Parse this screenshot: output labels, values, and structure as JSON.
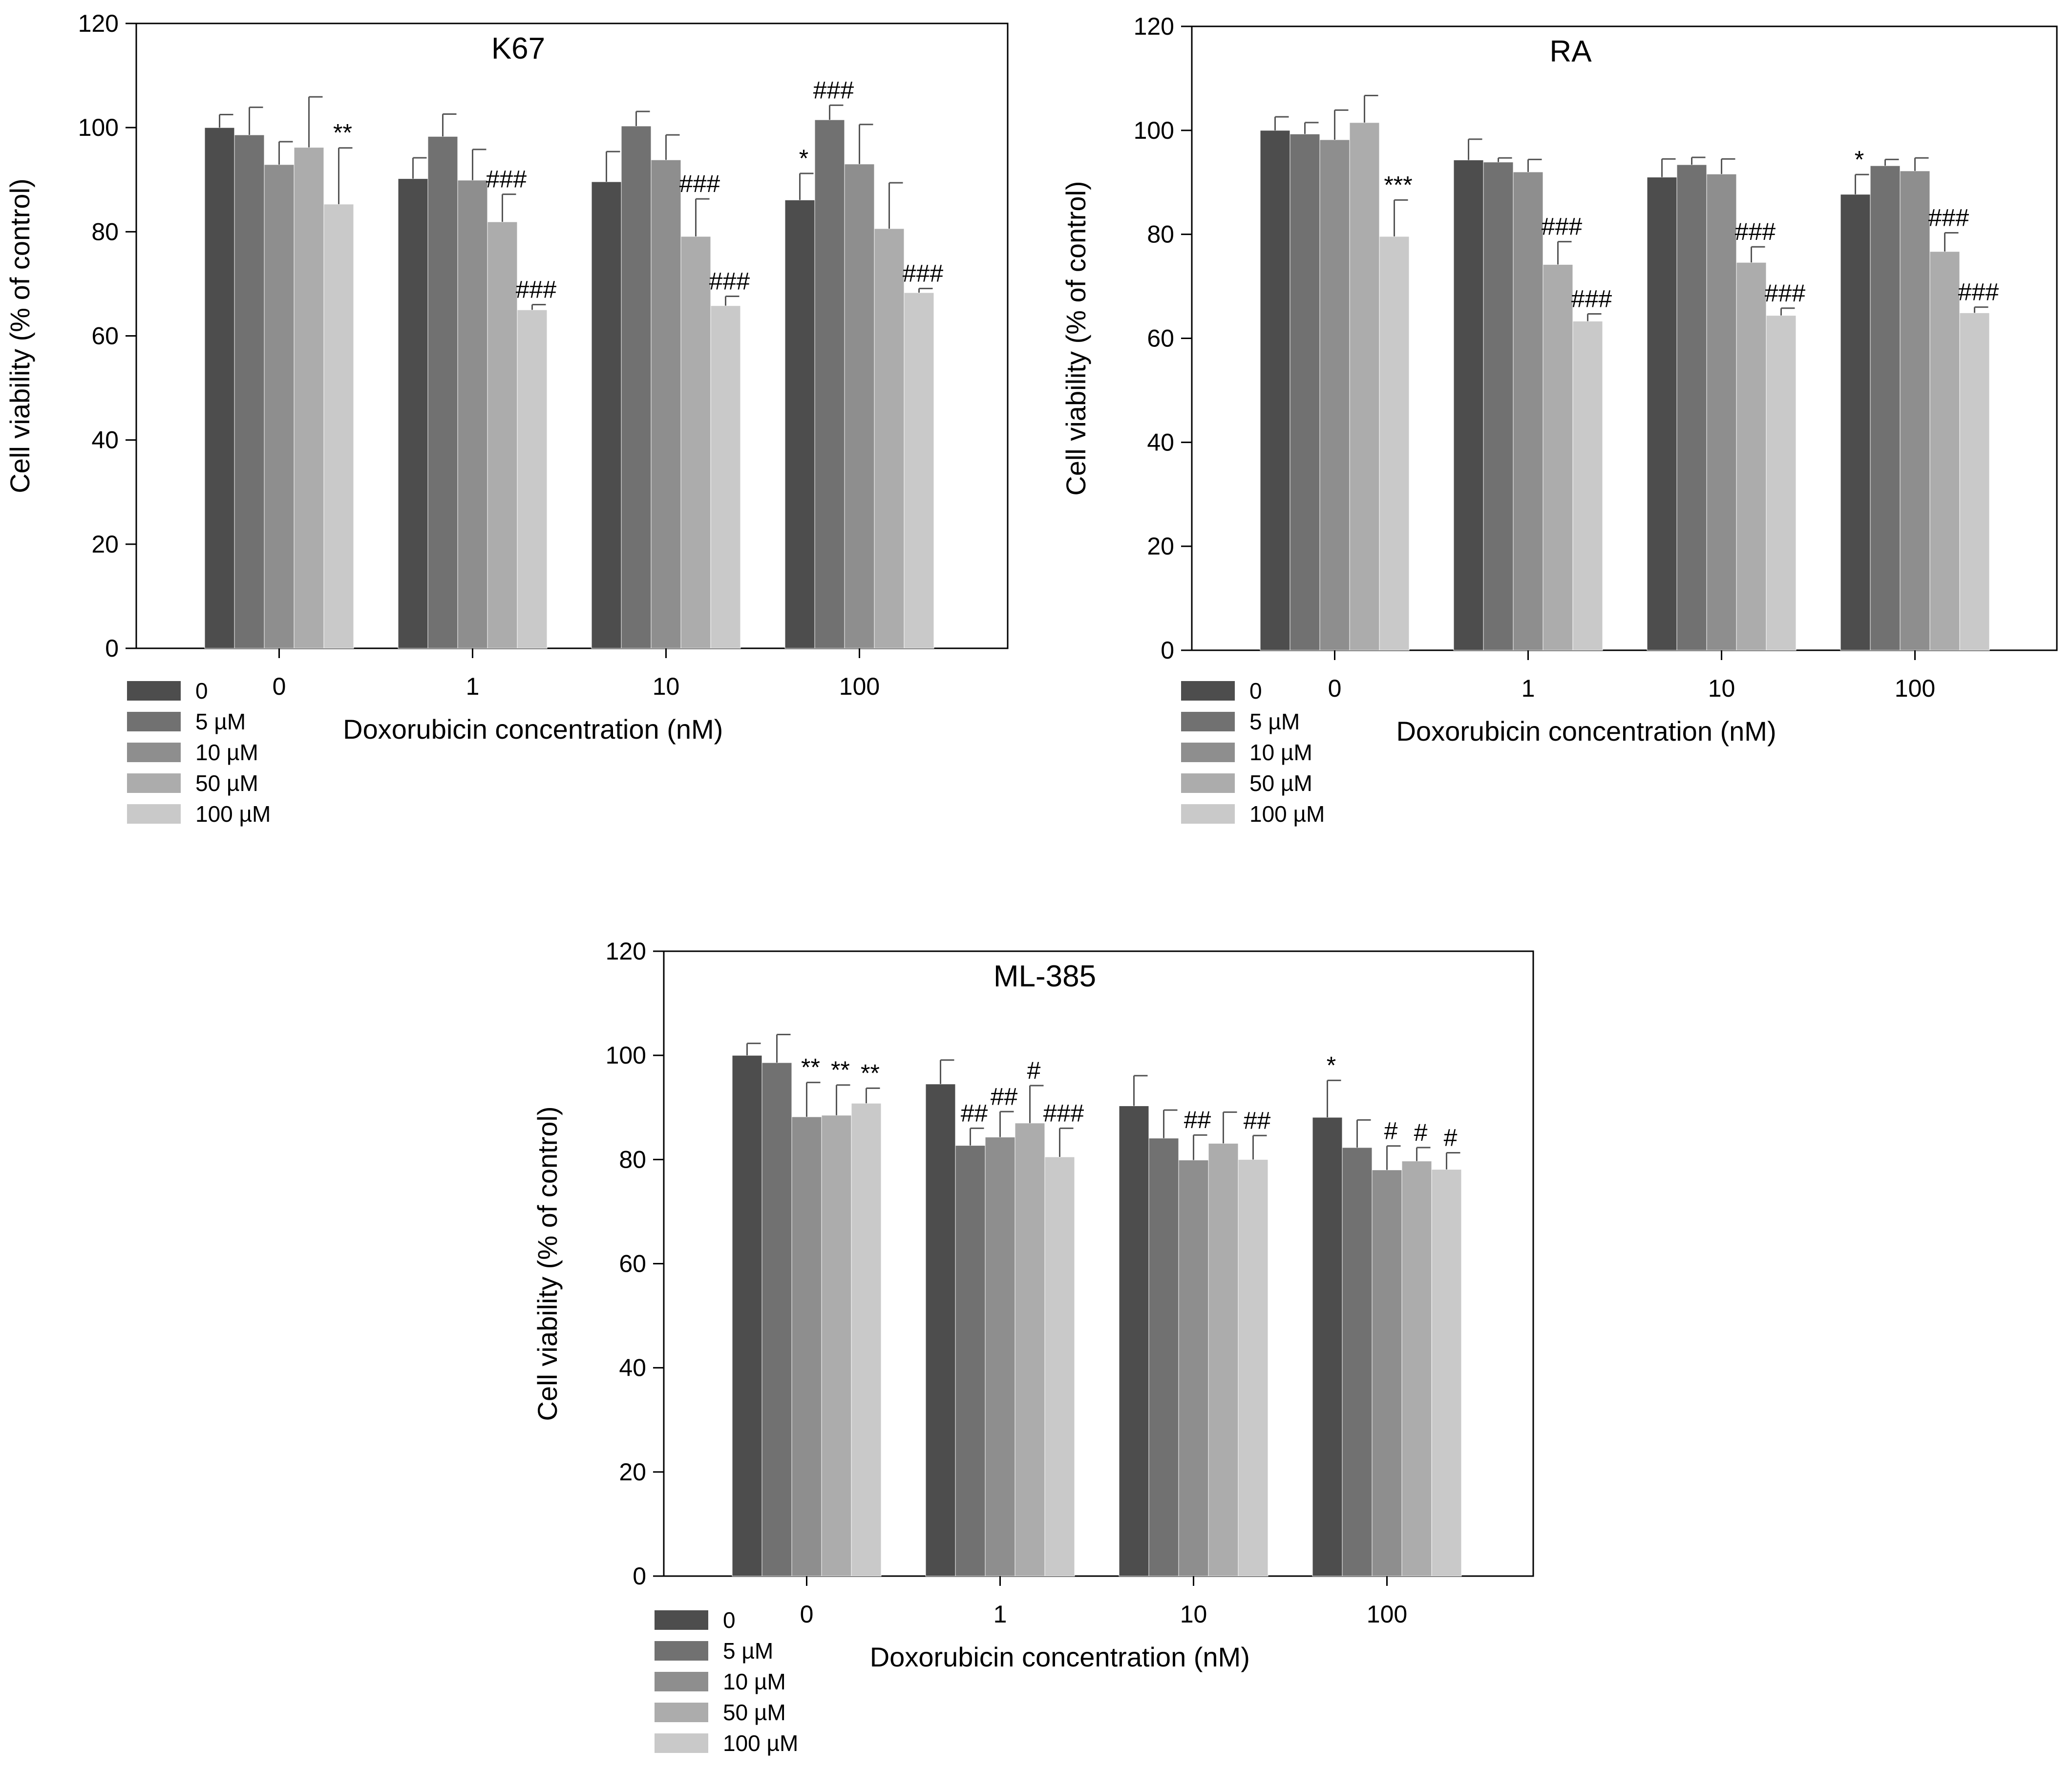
{
  "figure_title": "",
  "colors": {
    "series": [
      "#4d4d4d",
      "#717171",
      "#8e8e8e",
      "#acacac",
      "#c9c9c9"
    ],
    "axis": "#000000",
    "background": "#ffffff",
    "error_bar": "#555555"
  },
  "chart_data": [
    {
      "type": "bar",
      "title": "K67",
      "xlabel": "Doxorubicin concentration (nM)",
      "ylabel": "Cell viability (% of control)",
      "ylim": [
        0,
        120
      ],
      "yticks": [
        0,
        20,
        40,
        60,
        80,
        100,
        120
      ],
      "grid": false,
      "legend_position": "bottom-left",
      "categories": [
        "0",
        "1",
        "10",
        "100"
      ],
      "series": [
        {
          "name": "0",
          "values": [
            100,
            90.2,
            89.6,
            86.1
          ],
          "errors": [
            2.5,
            4.0,
            5.8,
            5.1
          ],
          "labels": [
            "",
            "",
            "",
            "*"
          ]
        },
        {
          "name": "5 µM",
          "values": [
            98.6,
            98.3,
            100.3,
            101.5
          ],
          "errors": [
            5.3,
            4.3,
            2.8,
            2.8
          ],
          "labels": [
            "",
            "",
            "",
            "###"
          ]
        },
        {
          "name": "10 µM",
          "values": [
            92.9,
            89.9,
            93.8,
            93.0
          ],
          "errors": [
            4.4,
            5.9,
            4.8,
            7.6
          ],
          "labels": [
            "",
            "",
            "",
            ""
          ]
        },
        {
          "name": "50 µM",
          "values": [
            96.2,
            81.9,
            79.1,
            80.6
          ],
          "errors": [
            9.7,
            5.3,
            7.2,
            8.8
          ],
          "labels": [
            "",
            "###",
            "###",
            ""
          ]
        },
        {
          "name": "100 µM",
          "values": [
            85.3,
            65.0,
            65.8,
            68.3
          ],
          "errors": [
            10.8,
            1.0,
            1.8,
            0.8
          ],
          "labels": [
            "**",
            "###",
            "###",
            "###"
          ]
        }
      ]
    },
    {
      "type": "bar",
      "title": "RA",
      "xlabel": "Doxorubicin concentration (nM)",
      "ylabel": "Cell viability (% of control)",
      "ylim": [
        0,
        120
      ],
      "yticks": [
        0,
        20,
        40,
        60,
        80,
        100,
        120
      ],
      "grid": false,
      "legend_position": "bottom-left",
      "categories": [
        "0",
        "1",
        "10",
        "100"
      ],
      "series": [
        {
          "name": "0",
          "values": [
            100,
            94.3,
            91.0,
            87.7
          ],
          "errors": [
            2.6,
            4.0,
            3.5,
            3.8
          ],
          "labels": [
            "",
            "",
            "",
            "*"
          ]
        },
        {
          "name": "5 µM",
          "values": [
            99.3,
            93.9,
            93.4,
            93.2
          ],
          "errors": [
            2.2,
            0.8,
            1.4,
            1.2
          ],
          "labels": [
            "",
            "",
            "",
            ""
          ]
        },
        {
          "name": "10 µM",
          "values": [
            98.2,
            92.0,
            91.6,
            92.2
          ],
          "errors": [
            5.7,
            2.4,
            2.9,
            2.5
          ],
          "labels": [
            "",
            "",
            "",
            ""
          ]
        },
        {
          "name": "50 µM",
          "values": [
            101.5,
            74.2,
            74.6,
            76.7
          ],
          "errors": [
            5.2,
            4.4,
            3.0,
            3.6
          ],
          "labels": [
            "",
            "###",
            "###",
            "###"
          ]
        },
        {
          "name": "100 µM",
          "values": [
            79.6,
            63.3,
            64.4,
            64.9
          ],
          "errors": [
            7.0,
            1.4,
            1.4,
            1.1
          ],
          "labels": [
            "***",
            "###",
            "###",
            "###"
          ]
        }
      ]
    },
    {
      "type": "bar",
      "title": "ML-385",
      "xlabel": "Doxorubicin concentration (nM)",
      "ylabel": "Cell viability (% of control)",
      "ylim": [
        0,
        120
      ],
      "yticks": [
        0,
        20,
        40,
        60,
        80,
        100,
        120
      ],
      "grid": false,
      "legend_position": "bottom-left",
      "categories": [
        "0",
        "1",
        "10",
        "100"
      ],
      "series": [
        {
          "name": "0",
          "values": [
            100,
            94.5,
            90.3,
            88.1
          ],
          "errors": [
            2.3,
            4.6,
            5.8,
            7.1
          ],
          "labels": [
            "",
            "",
            "",
            "*"
          ]
        },
        {
          "name": "5 µM",
          "values": [
            98.6,
            82.7,
            84.1,
            82.3
          ],
          "errors": [
            5.4,
            3.3,
            5.4,
            5.3
          ],
          "labels": [
            "",
            "##",
            "",
            ""
          ]
        },
        {
          "name": "10 µM",
          "values": [
            88.2,
            84.3,
            79.9,
            78.0
          ],
          "errors": [
            6.6,
            4.9,
            4.8,
            4.6
          ],
          "labels": [
            "**",
            "##",
            "##",
            "#"
          ]
        },
        {
          "name": "50 µM",
          "values": [
            88.5,
            87.0,
            83.1,
            79.7
          ],
          "errors": [
            5.8,
            7.2,
            6.0,
            2.6
          ],
          "labels": [
            "**",
            "#",
            "",
            "#"
          ]
        },
        {
          "name": "100 µM",
          "values": [
            90.8,
            80.5,
            80.0,
            78.1
          ],
          "errors": [
            2.9,
            5.5,
            4.6,
            3.2
          ],
          "labels": [
            "**",
            "###",
            "##",
            "#"
          ]
        }
      ]
    }
  ]
}
